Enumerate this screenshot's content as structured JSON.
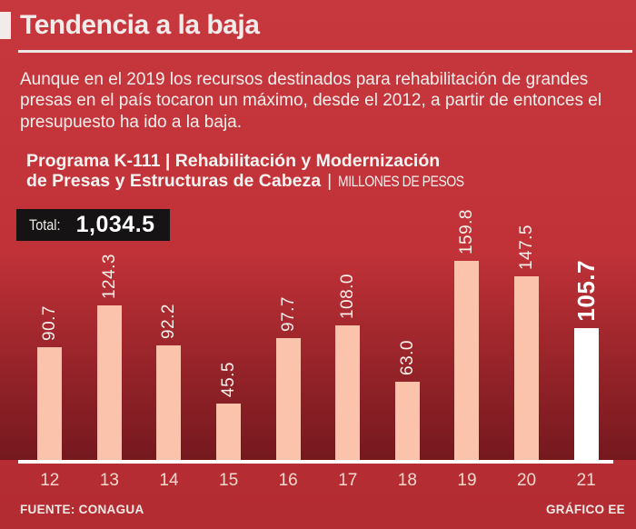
{
  "page": {
    "title": "Tendencia a la baja",
    "intro": "Aunque en el 2019 los recursos destinados para rehabilitación de grandes presas en el país tocaron un máximo, desde el 2012, a partir de entonces el presupuesto ha ido a la baja.",
    "source": "FUENTE: CONAGUA",
    "credit": "GRÁFICO EE"
  },
  "chart_header": {
    "line1": "Programa K-111 | Rehabilitación y Modernización",
    "line2_bold": "de Presas y Estructuras de Cabeza",
    "separator": "|",
    "units": "MILLONES DE PESOS"
  },
  "total": {
    "label": "Total:",
    "value": "1,034.5"
  },
  "chart_data": {
    "type": "bar",
    "title": "Programa K-111 | Rehabilitación y Modernización de Presas y Estructuras de Cabeza",
    "units": "MILLONES DE PESOS",
    "categories": [
      "12",
      "13",
      "14",
      "15",
      "16",
      "17",
      "18",
      "19",
      "20",
      "21"
    ],
    "values": [
      90.7,
      124.3,
      92.2,
      45.5,
      97.7,
      108.0,
      63.0,
      159.8,
      147.5,
      105.7
    ],
    "value_labels": [
      "90.7",
      "124.3",
      "92.2",
      "45.5",
      "97.7",
      "108.0",
      "63.0",
      "159.8",
      "147.5",
      "105.7"
    ],
    "total": 1034.5,
    "highlight_category": "21",
    "ylim": [
      0,
      160
    ],
    "grid": false,
    "legend": false,
    "colors": {
      "bar": "#FBC2AC",
      "highlight_bar": "#FFFFFF",
      "value_label": "#F9F1EC",
      "axis_line": "#FEFEFE",
      "background_top": "#C7383E",
      "background_bottom": "#7E1A20",
      "total_box": "#151313"
    }
  }
}
